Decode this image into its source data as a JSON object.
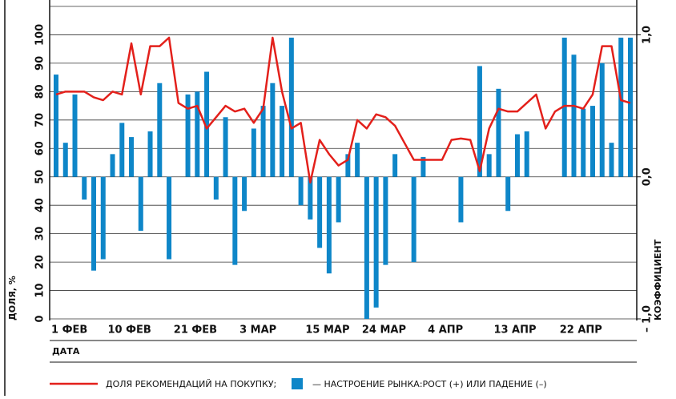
{
  "chart_data": {
    "type": "bar",
    "x_label": "ДАТА",
    "y_label": "ДОЛЯ, %",
    "y2_label": "КОЭФФИЦИЕНТ",
    "categories": [
      "1 ФЕВ",
      null,
      null,
      null,
      null,
      null,
      "10 ФЕВ",
      null,
      null,
      null,
      null,
      null,
      null,
      "21 ФЕВ",
      null,
      null,
      null,
      null,
      null,
      null,
      "3 МАР",
      null,
      null,
      null,
      null,
      null,
      null,
      "15 МАР",
      null,
      null,
      null,
      null,
      null,
      "24 МАР",
      null,
      null,
      null,
      null,
      null,
      null,
      "4 АПР",
      null,
      null,
      null,
      null,
      null,
      null,
      "13 АПР",
      null,
      null,
      null,
      null,
      null,
      null,
      "22 АПР",
      null,
      null,
      null,
      null,
      null,
      null,
      null
    ],
    "series": [
      {
        "name": "ДОЛЯ РЕКОМЕНДАЦИЙ НА ПОКУПКУ;",
        "type": "line",
        "color": "#e3201b",
        "values": [
          79,
          80,
          80,
          80,
          78,
          77,
          80,
          79,
          97,
          79,
          96,
          96,
          99,
          76,
          74,
          75,
          67,
          71,
          75,
          73,
          74,
          69,
          74,
          99,
          80,
          67,
          69,
          48,
          63,
          58,
          54,
          56,
          70,
          67,
          72,
          71,
          68,
          62,
          56,
          56,
          56,
          56,
          63,
          63.5,
          63,
          52,
          67,
          74,
          73,
          73,
          76,
          79,
          67,
          73,
          75,
          75,
          74,
          79,
          96,
          96,
          77,
          76
        ]
      },
      {
        "name": "— НАСТРОЕНИЕ РЫНКА:РОСТ (+) ИЛИ ПАДЕНИЕ (–)",
        "type": "bar",
        "axis": "y2",
        "color": "#0e86c8",
        "values": [
          0.72,
          0.24,
          0.58,
          -0.16,
          -0.66,
          -0.58,
          0.16,
          0.38,
          0.28,
          -0.38,
          0.32,
          0.66,
          -0.58,
          0,
          0.58,
          0.6,
          0.74,
          -0.16,
          0.42,
          -0.62,
          -0.24,
          0.34,
          0.5,
          0.66,
          0.5,
          0.98,
          -0.2,
          -0.3,
          -0.5,
          -0.68,
          -0.32,
          0.16,
          0.24,
          -1,
          -0.92,
          -0.62,
          0.16,
          0,
          -0.6,
          0.14,
          0,
          0,
          0,
          -0.32,
          0,
          0.78,
          0.16,
          0.62,
          -0.24,
          0.3,
          0.32,
          0,
          0,
          0,
          0.98,
          0.86,
          0.48,
          0.5,
          0.8,
          0.24,
          0.98,
          0.98
        ]
      }
    ],
    "ylim": [
      0,
      110
    ],
    "yticks": [
      0,
      10,
      20,
      30,
      40,
      50,
      60,
      70,
      80,
      90,
      100
    ],
    "y2lim": [
      -1,
      1.2
    ],
    "y2ticks": [
      {
        "value": -1,
        "label": "– 1,0"
      },
      {
        "value": 0,
        "label": "0,0"
      },
      {
        "value": 1,
        "label": "1,0"
      }
    ],
    "grid": true
  }
}
